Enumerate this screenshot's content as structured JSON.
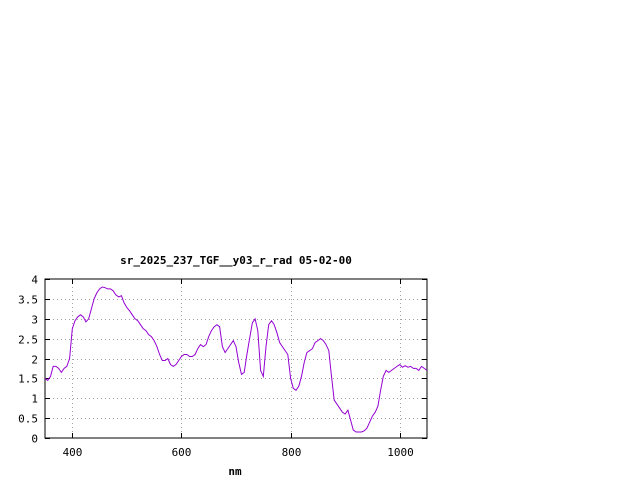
{
  "chart_data": {
    "type": "line",
    "title": "sr_2025_237_TGF__y03_r_rad 05-02-00",
    "xlabel": "nm",
    "ylabel": "",
    "xlim": [
      350,
      1050
    ],
    "ylim": [
      0,
      4
    ],
    "x_ticks": [
      400,
      600,
      800,
      1000
    ],
    "y_ticks": [
      0,
      0.5,
      1,
      1.5,
      2,
      2.5,
      3,
      3.5,
      4
    ],
    "x_tick_labels": [
      "400",
      "600",
      "800",
      "1000"
    ],
    "y_tick_labels": [
      "0",
      "0.5",
      "1",
      "1.5",
      "2",
      "2.5",
      "3",
      "3.5",
      "4"
    ],
    "grid": true,
    "legend": "none",
    "series": [
      {
        "color": "#9400d3",
        "points": [
          [
            350,
            1.5
          ],
          [
            355,
            1.45
          ],
          [
            360,
            1.55
          ],
          [
            365,
            1.8
          ],
          [
            370,
            1.8
          ],
          [
            375,
            1.75
          ],
          [
            380,
            1.65
          ],
          [
            385,
            1.75
          ],
          [
            390,
            1.8
          ],
          [
            395,
            2.0
          ],
          [
            400,
            2.75
          ],
          [
            405,
            2.95
          ],
          [
            410,
            3.05
          ],
          [
            415,
            3.1
          ],
          [
            420,
            3.05
          ],
          [
            425,
            2.92
          ],
          [
            430,
            3.0
          ],
          [
            435,
            3.25
          ],
          [
            440,
            3.5
          ],
          [
            445,
            3.65
          ],
          [
            450,
            3.75
          ],
          [
            455,
            3.8
          ],
          [
            460,
            3.78
          ],
          [
            465,
            3.75
          ],
          [
            470,
            3.75
          ],
          [
            475,
            3.7
          ],
          [
            480,
            3.6
          ],
          [
            485,
            3.55
          ],
          [
            490,
            3.58
          ],
          [
            495,
            3.4
          ],
          [
            500,
            3.28
          ],
          [
            505,
            3.2
          ],
          [
            510,
            3.1
          ],
          [
            515,
            3.0
          ],
          [
            520,
            2.95
          ],
          [
            525,
            2.85
          ],
          [
            530,
            2.75
          ],
          [
            535,
            2.7
          ],
          [
            540,
            2.6
          ],
          [
            545,
            2.55
          ],
          [
            550,
            2.45
          ],
          [
            555,
            2.3
          ],
          [
            560,
            2.1
          ],
          [
            565,
            1.95
          ],
          [
            570,
            1.95
          ],
          [
            575,
            2.0
          ],
          [
            580,
            1.85
          ],
          [
            585,
            1.8
          ],
          [
            590,
            1.85
          ],
          [
            595,
            1.95
          ],
          [
            600,
            2.05
          ],
          [
            605,
            2.1
          ],
          [
            610,
            2.1
          ],
          [
            615,
            2.05
          ],
          [
            620,
            2.05
          ],
          [
            625,
            2.1
          ],
          [
            630,
            2.25
          ],
          [
            635,
            2.35
          ],
          [
            640,
            2.3
          ],
          [
            645,
            2.35
          ],
          [
            650,
            2.55
          ],
          [
            655,
            2.7
          ],
          [
            660,
            2.8
          ],
          [
            665,
            2.85
          ],
          [
            670,
            2.8
          ],
          [
            675,
            2.3
          ],
          [
            680,
            2.15
          ],
          [
            685,
            2.25
          ],
          [
            690,
            2.35
          ],
          [
            695,
            2.45
          ],
          [
            700,
            2.3
          ],
          [
            705,
            1.9
          ],
          [
            710,
            1.6
          ],
          [
            715,
            1.65
          ],
          [
            720,
            2.1
          ],
          [
            725,
            2.5
          ],
          [
            730,
            2.9
          ],
          [
            735,
            3.0
          ],
          [
            740,
            2.7
          ],
          [
            745,
            1.7
          ],
          [
            750,
            1.55
          ],
          [
            755,
            2.3
          ],
          [
            760,
            2.85
          ],
          [
            765,
            2.95
          ],
          [
            770,
            2.85
          ],
          [
            775,
            2.65
          ],
          [
            780,
            2.4
          ],
          [
            785,
            2.3
          ],
          [
            790,
            2.2
          ],
          [
            795,
            2.1
          ],
          [
            800,
            1.5
          ],
          [
            805,
            1.25
          ],
          [
            810,
            1.2
          ],
          [
            815,
            1.3
          ],
          [
            820,
            1.55
          ],
          [
            825,
            1.9
          ],
          [
            830,
            2.15
          ],
          [
            835,
            2.2
          ],
          [
            840,
            2.25
          ],
          [
            845,
            2.4
          ],
          [
            850,
            2.45
          ],
          [
            855,
            2.5
          ],
          [
            860,
            2.45
          ],
          [
            865,
            2.35
          ],
          [
            870,
            2.2
          ],
          [
            875,
            1.55
          ],
          [
            880,
            0.95
          ],
          [
            885,
            0.85
          ],
          [
            890,
            0.75
          ],
          [
            895,
            0.65
          ],
          [
            900,
            0.6
          ],
          [
            905,
            0.7
          ],
          [
            910,
            0.45
          ],
          [
            915,
            0.2
          ],
          [
            920,
            0.15
          ],
          [
            925,
            0.15
          ],
          [
            930,
            0.15
          ],
          [
            935,
            0.18
          ],
          [
            940,
            0.25
          ],
          [
            945,
            0.4
          ],
          [
            950,
            0.55
          ],
          [
            955,
            0.65
          ],
          [
            960,
            0.8
          ],
          [
            965,
            1.2
          ],
          [
            970,
            1.55
          ],
          [
            975,
            1.7
          ],
          [
            980,
            1.65
          ],
          [
            985,
            1.7
          ],
          [
            990,
            1.75
          ],
          [
            995,
            1.8
          ],
          [
            1000,
            1.85
          ],
          [
            1005,
            1.78
          ],
          [
            1010,
            1.82
          ],
          [
            1015,
            1.78
          ],
          [
            1020,
            1.8
          ],
          [
            1025,
            1.75
          ],
          [
            1030,
            1.75
          ],
          [
            1035,
            1.7
          ],
          [
            1040,
            1.8
          ],
          [
            1045,
            1.75
          ],
          [
            1050,
            1.7
          ]
        ]
      }
    ]
  }
}
